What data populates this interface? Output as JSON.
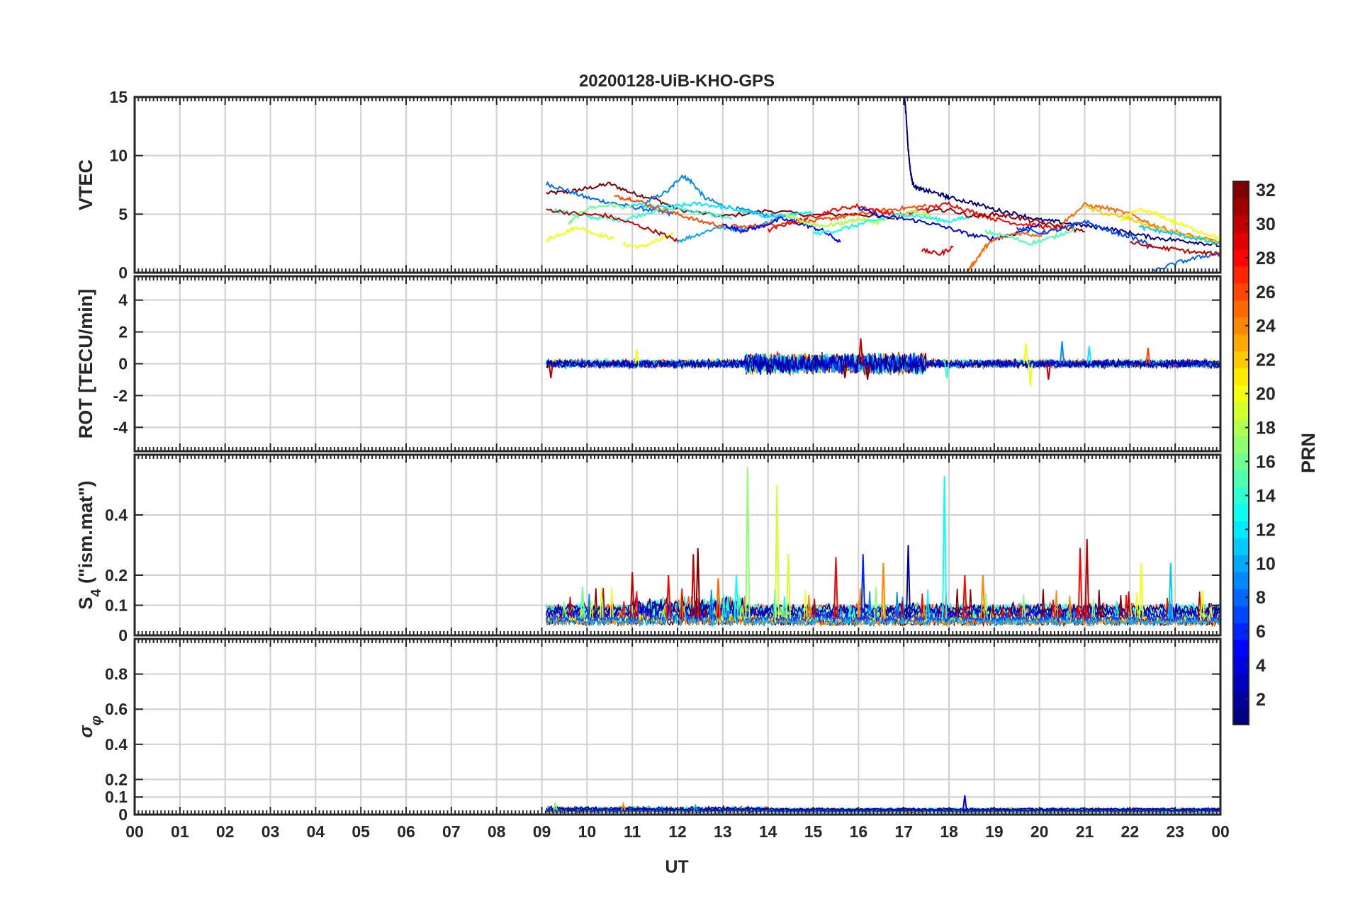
{
  "chart_data": {
    "type": "line",
    "title": "20200128-UiB-KHO-GPS",
    "xlabel": "UT",
    "x_ticks": [
      "00",
      "01",
      "02",
      "03",
      "04",
      "05",
      "06",
      "07",
      "08",
      "09",
      "10",
      "11",
      "12",
      "13",
      "14",
      "15",
      "16",
      "17",
      "18",
      "19",
      "20",
      "21",
      "22",
      "23",
      "00"
    ],
    "xlim": [
      0,
      24
    ],
    "grid": true,
    "colorbar": {
      "label": "PRN",
      "range": [
        1,
        32
      ],
      "ticks": [
        "2",
        "4",
        "6",
        "8",
        "10",
        "12",
        "14",
        "16",
        "18",
        "20",
        "22",
        "24",
        "26",
        "28",
        "30",
        "32"
      ],
      "colormap": "jet",
      "colors": [
        "#00008f",
        "#0000ff",
        "#0080ff",
        "#00ffff",
        "#80ff80",
        "#ffff00",
        "#ff8000",
        "#ff0000",
        "#800000"
      ]
    },
    "panels": [
      {
        "name": "vtec",
        "ylabel": "VTEC",
        "ylim": [
          0,
          15
        ],
        "y_ticks": [
          {
            "v": 0,
            "t": "0"
          },
          {
            "v": 5,
            "t": "5"
          },
          {
            "v": 10,
            "t": "10"
          },
          {
            "v": 15,
            "t": "15"
          }
        ],
        "series": [
          {
            "prn": 32,
            "x": [
              9.1,
              9.6,
              10.0,
              10.5,
              11.0,
              11.5,
              12.0,
              13.0,
              14.0,
              15.0,
              16.0,
              16.8
            ],
            "y": [
              6.8,
              6.9,
              7.2,
              7.6,
              6.8,
              6.3,
              5.4,
              4.8,
              5.3,
              4.9,
              5.0,
              4.6
            ]
          },
          {
            "prn": 8,
            "x": [
              9.1,
              9.5,
              10.0,
              10.5,
              11.0,
              11.5,
              11.9
            ],
            "y": [
              7.6,
              7.1,
              6.4,
              6.0,
              5.6,
              5.3,
              5.0
            ]
          },
          {
            "prn": 9,
            "x": [
              11.3,
              11.8,
              12.1,
              12.3,
              12.6,
              13.0,
              13.5,
              14.0,
              14.6
            ],
            "y": [
              6.0,
              7.0,
              8.3,
              7.8,
              6.4,
              5.7,
              5.3,
              4.9,
              4.6
            ]
          },
          {
            "prn": 20,
            "x": [
              9.1,
              9.4,
              9.8,
              10.2,
              10.6
            ],
            "y": [
              2.8,
              3.3,
              3.9,
              3.3,
              2.9
            ]
          },
          {
            "prn": 20,
            "x": [
              10.8,
              11.2,
              11.6,
              11.9
            ],
            "y": [
              2.4,
              2.2,
              2.8,
              3.3
            ]
          },
          {
            "prn": 14,
            "x": [
              9.2,
              9.7,
              10.2,
              10.8,
              11.4,
              12.0,
              12.6,
              13.2
            ],
            "y": [
              5.4,
              5.0,
              4.7,
              4.5,
              5.2,
              5.5,
              5.1,
              4.6
            ]
          },
          {
            "prn": 16,
            "x": [
              9.6,
              10.0,
              10.5,
              11.0
            ],
            "y": [
              4.2,
              5.5,
              5.8,
              5.5
            ]
          },
          {
            "prn": 12,
            "x": [
              11.0,
              11.5,
              12.0,
              12.5,
              13.0,
              13.5,
              14.0,
              14.5,
              15.0
            ],
            "y": [
              5.8,
              5.6,
              5.7,
              5.9,
              5.6,
              5.2,
              4.8,
              4.9,
              5.1
            ]
          },
          {
            "prn": 10,
            "x": [
              12.0,
              12.4,
              12.9,
              13.3,
              13.8,
              14.2
            ],
            "y": [
              2.7,
              3.2,
              3.9,
              3.7,
              4.0,
              4.6
            ]
          },
          {
            "prn": 26,
            "x": [
              10.6,
              11.0,
              11.5,
              12.0,
              12.5,
              13.0,
              13.5,
              14.0,
              14.5,
              15.0,
              15.5,
              16.0,
              16.5,
              17.0,
              17.5
            ],
            "y": [
              6.5,
              6.3,
              5.6,
              5.0,
              4.4,
              4.0,
              3.9,
              4.1,
              4.3,
              4.4,
              4.7,
              5.0,
              5.3,
              5.5,
              5.7
            ]
          },
          {
            "prn": 30,
            "x": [
              9.1,
              9.8,
              10.4,
              11.0,
              11.6,
              12.0
            ],
            "y": [
              5.4,
              5.0,
              4.9,
              4.2,
              3.4,
              2.7
            ]
          },
          {
            "prn": 5,
            "x": [
              13.0,
              13.4,
              13.8,
              14.3,
              14.8,
              15.2,
              15.6
            ],
            "y": [
              4.1,
              3.6,
              3.9,
              4.6,
              4.1,
              3.6,
              2.6
            ]
          },
          {
            "prn": 28,
            "x": [
              14.0,
              14.5,
              15.0,
              15.5,
              16.0,
              16.5,
              17.0,
              17.5,
              18.0,
              18.5,
              19.0,
              19.5,
              20.0,
              20.4
            ],
            "y": [
              3.6,
              4.3,
              4.8,
              5.4,
              5.7,
              5.2,
              4.9,
              5.5,
              5.9,
              5.2,
              4.6,
              4.2,
              4.0,
              3.7
            ]
          },
          {
            "prn": 18,
            "x": [
              14.4,
              14.8,
              15.2,
              15.6,
              16.0,
              16.4,
              16.8,
              17.2,
              17.6
            ],
            "y": [
              4.9,
              4.3,
              4.0,
              4.2,
              4.6,
              4.3,
              4.8,
              5.2,
              4.9
            ]
          },
          {
            "prn": 13,
            "x": [
              15.0,
              15.5,
              16.0,
              16.5,
              17.0,
              17.5,
              18.0,
              18.5
            ],
            "y": [
              3.3,
              3.6,
              4.1,
              4.6,
              5.0,
              4.7,
              4.4,
              4.8
            ]
          },
          {
            "prn": 1,
            "x": [
              17.02,
              17.05,
              17.1,
              17.15,
              17.2,
              17.3,
              17.5,
              17.8,
              18.0,
              18.5,
              19.0,
              19.5,
              20.0,
              20.5,
              21.0,
              21.5,
              22.0,
              22.5,
              23.0,
              23.5,
              24.0
            ],
            "y": [
              15.0,
              13.5,
              10.5,
              8.6,
              7.6,
              7.2,
              7.0,
              6.7,
              6.4,
              6.0,
              5.4,
              5.0,
              4.5,
              4.3,
              4.0,
              3.8,
              3.4,
              3.0,
              2.8,
              2.6,
              2.3
            ]
          },
          {
            "prn": 4,
            "x": [
              16.0,
              16.5,
              17.0,
              17.5,
              18.0,
              18.5,
              19.0,
              19.5,
              20.0
            ],
            "y": [
              5.5,
              4.8,
              4.6,
              4.3,
              3.8,
              3.2,
              2.9,
              3.4,
              4.2
            ]
          },
          {
            "prn": 29,
            "x": [
              17.4,
              17.8,
              18.1
            ],
            "y": [
              1.9,
              1.6,
              2.2
            ]
          },
          {
            "prn": 25,
            "x": [
              18.4,
              18.6,
              18.8,
              19.0,
              19.5,
              20.0,
              20.5,
              21.0,
              21.5,
              22.0,
              22.5,
              23.0,
              23.5,
              24.0
            ],
            "y": [
              0.1,
              1.1,
              2.2,
              2.8,
              3.4,
              3.2,
              4.2,
              5.8,
              5.5,
              5.0,
              4.1,
              3.5,
              3.0,
              2.6
            ]
          },
          {
            "prn": 31,
            "x": [
              17.5,
              18.0,
              18.5,
              19.0,
              19.5,
              20.0,
              20.5,
              21.0
            ],
            "y": [
              5.2,
              5.4,
              4.8,
              5.0,
              4.7,
              4.3,
              3.9,
              3.5
            ]
          },
          {
            "prn": 15,
            "x": [
              18.8,
              19.3,
              19.8,
              20.3,
              20.8
            ],
            "y": [
              3.5,
              3.1,
              2.5,
              3.0,
              3.8
            ]
          },
          {
            "prn": 7,
            "x": [
              19.5,
              20.0,
              20.5,
              21.0,
              21.5,
              22.0,
              22.5
            ],
            "y": [
              3.8,
              3.4,
              3.7,
              4.4,
              3.6,
              3.1,
              2.3
            ]
          },
          {
            "prn": 22,
            "x": [
              21.0,
              21.5,
              22.0,
              22.5,
              23.0,
              23.5,
              24.0
            ],
            "y": [
              5.6,
              5.0,
              4.6,
              3.9,
              3.4,
              2.9,
              2.6
            ]
          },
          {
            "prn": 20,
            "x": [
              21.8,
              22.2,
              22.6,
              23.0,
              23.5,
              24.0
            ],
            "y": [
              4.4,
              5.4,
              5.0,
              4.3,
              3.6,
              2.9
            ]
          },
          {
            "prn": 11,
            "x": [
              22.2,
              22.6,
              23.0,
              23.5,
              24.0
            ],
            "y": [
              3.9,
              3.6,
              3.3,
              2.9,
              2.4
            ]
          },
          {
            "prn": 8,
            "x": [
              22.5,
              23.0,
              23.5,
              24.0
            ],
            "y": [
              0.1,
              0.8,
              1.3,
              1.7
            ]
          },
          {
            "prn": 30,
            "x": [
              22.0,
              22.5,
              23.0,
              23.5,
              24.0
            ],
            "y": [
              2.6,
              2.2,
              2.0,
              1.7,
              1.6
            ]
          }
        ]
      },
      {
        "name": "rot",
        "ylabel": "ROT [TECU/min]",
        "ylim": [
          -5.5,
          5.5
        ],
        "y_ticks": [
          {
            "v": -4,
            "t": "-4"
          },
          {
            "v": -2,
            "t": "-2"
          },
          {
            "v": 0,
            "t": "0"
          },
          {
            "v": 2,
            "t": "2"
          },
          {
            "v": 4,
            "t": "4"
          }
        ],
        "noise": {
          "start": 9.1,
          "end": 24,
          "level": 0,
          "amp_base": 0.28,
          "amp_active": 0.75,
          "active_range": [
            13.5,
            17.5
          ]
        },
        "spikes": [
          {
            "x": 9.2,
            "y": -0.9,
            "prn": 30
          },
          {
            "x": 11.1,
            "y": 0.9,
            "prn": 20
          },
          {
            "x": 15.7,
            "y": -0.9,
            "prn": 32
          },
          {
            "x": 16.05,
            "y": 1.6,
            "prn": 30
          },
          {
            "x": 16.2,
            "y": -1.0,
            "prn": 32
          },
          {
            "x": 17.95,
            "y": -0.9,
            "prn": 14
          },
          {
            "x": 19.7,
            "y": 1.3,
            "prn": 20
          },
          {
            "x": 19.8,
            "y": -1.4,
            "prn": 20
          },
          {
            "x": 20.2,
            "y": -1.0,
            "prn": 30
          },
          {
            "x": 20.5,
            "y": 1.4,
            "prn": 9
          },
          {
            "x": 21.1,
            "y": 1.1,
            "prn": 12
          },
          {
            "x": 22.4,
            "y": 1.0,
            "prn": 26
          }
        ]
      },
      {
        "name": "s4",
        "ylabel": "S",
        "ylabel_sub": "4",
        "ylabel_suffix": " (\"ism.mat\")",
        "ylim": [
          0,
          0.6
        ],
        "y_ticks": [
          {
            "v": 0,
            "t": "0"
          },
          {
            "v": 0.1,
            "t": "0.1"
          },
          {
            "v": 0.2,
            "t": "0.2"
          },
          {
            "v": 0.4,
            "t": "0.4"
          }
        ],
        "noise": {
          "start": 9.1,
          "end": 24,
          "level": 0.055,
          "amp_base": 0.035,
          "amp_active": 0.06,
          "active_range": [
            11.0,
            13.5
          ]
        },
        "spikes": [
          {
            "x": 9.9,
            "y": 0.16,
            "prn": 16
          },
          {
            "x": 11.0,
            "y": 0.21,
            "prn": 30
          },
          {
            "x": 11.8,
            "y": 0.2,
            "prn": 28
          },
          {
            "x": 12.35,
            "y": 0.27,
            "prn": 30
          },
          {
            "x": 12.45,
            "y": 0.29,
            "prn": 32
          },
          {
            "x": 12.9,
            "y": 0.19,
            "prn": 25
          },
          {
            "x": 13.3,
            "y": 0.2,
            "prn": 13
          },
          {
            "x": 13.55,
            "y": 0.56,
            "prn": 17
          },
          {
            "x": 14.2,
            "y": 0.5,
            "prn": 19
          },
          {
            "x": 14.45,
            "y": 0.27,
            "prn": 19
          },
          {
            "x": 15.5,
            "y": 0.26,
            "prn": 28
          },
          {
            "x": 16.1,
            "y": 0.27,
            "prn": 6
          },
          {
            "x": 16.55,
            "y": 0.24,
            "prn": 24
          },
          {
            "x": 17.1,
            "y": 0.3,
            "prn": 2
          },
          {
            "x": 17.9,
            "y": 0.53,
            "prn": 13
          },
          {
            "x": 18.35,
            "y": 0.2,
            "prn": 28
          },
          {
            "x": 18.75,
            "y": 0.2,
            "prn": 24
          },
          {
            "x": 20.9,
            "y": 0.29,
            "prn": 28
          },
          {
            "x": 21.05,
            "y": 0.32,
            "prn": 30
          },
          {
            "x": 22.25,
            "y": 0.24,
            "prn": 20
          },
          {
            "x": 22.9,
            "y": 0.24,
            "prn": 11
          },
          {
            "x": 23.6,
            "y": 0.15,
            "prn": 20
          }
        ]
      },
      {
        "name": "sigphi",
        "ylabel": "σ",
        "ylabel_sub": "φ",
        "ylim": [
          0,
          1
        ],
        "y_ticks": [
          {
            "v": 0,
            "t": "0"
          },
          {
            "v": 0.1,
            "t": "0.1"
          },
          {
            "v": 0.2,
            "t": "0.2"
          },
          {
            "v": 0.4,
            "t": "0.4"
          },
          {
            "v": 0.6,
            "t": "0.6"
          },
          {
            "v": 0.8,
            "t": "0.8"
          }
        ],
        "noise": {
          "start": 9.1,
          "end": 24,
          "level": 0.02,
          "amp_base": 0.012,
          "amp_active": 0.02,
          "active_range": [
            9.1,
            14.0
          ]
        },
        "spikes": [
          {
            "x": 9.3,
            "y": 0.07,
            "prn": 17
          },
          {
            "x": 10.8,
            "y": 0.06,
            "prn": 24
          },
          {
            "x": 12.4,
            "y": 0.05,
            "prn": 10
          },
          {
            "x": 18.35,
            "y": 0.11,
            "prn": 4
          }
        ]
      }
    ]
  }
}
